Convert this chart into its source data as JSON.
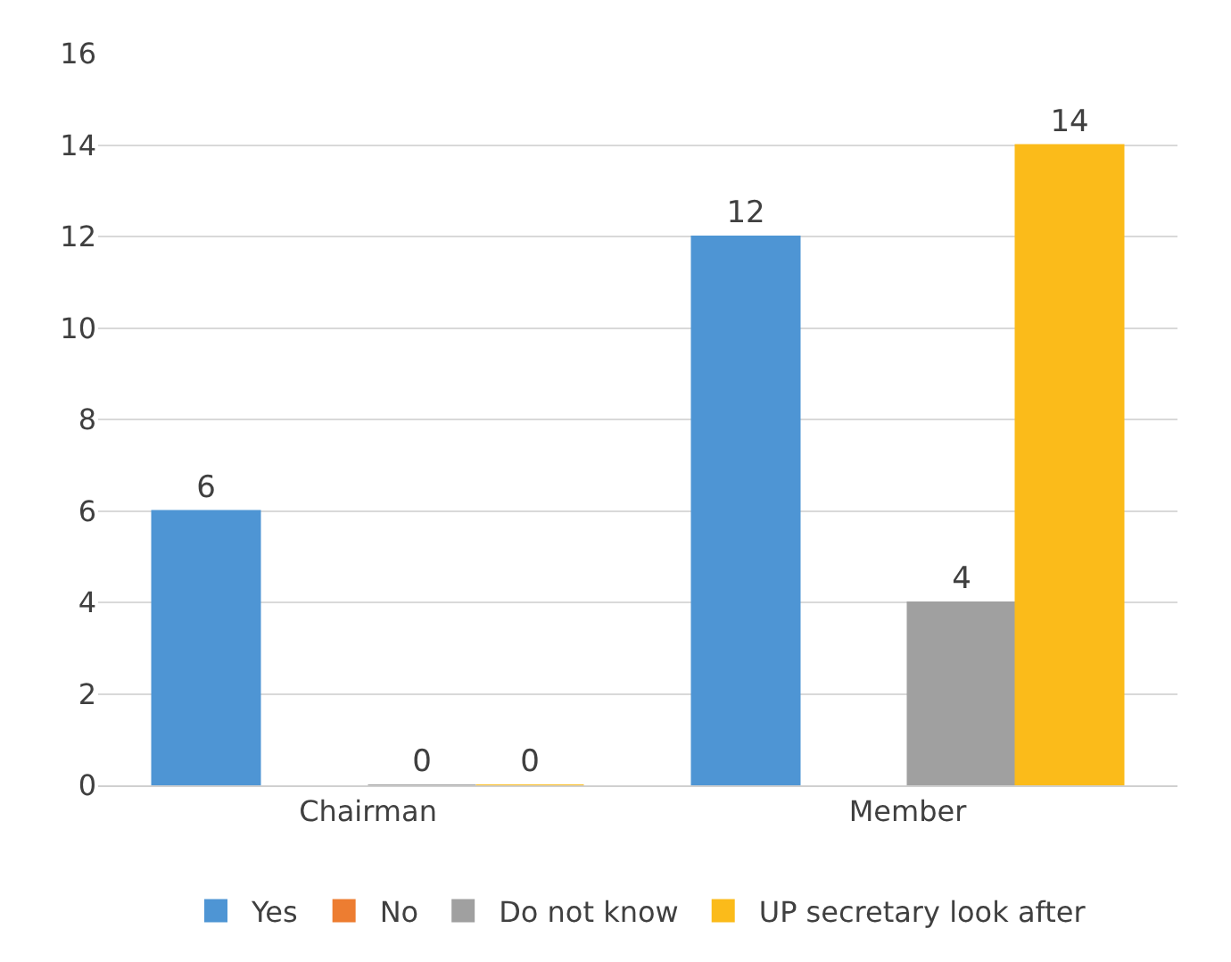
{
  "chart_data": {
    "type": "bar",
    "categories": [
      "Chairman",
      "Member"
    ],
    "series": [
      {
        "name": "Yes",
        "color": "#4e95d4",
        "values": [
          6,
          12
        ]
      },
      {
        "name": "No",
        "color": "#ed7d31",
        "values": [
          null,
          null
        ]
      },
      {
        "name": "Do not know",
        "color": "#a0a0a0",
        "values": [
          0,
          4
        ]
      },
      {
        "name": "UP secretary look after",
        "color": "#fbbb1a",
        "values": [
          0,
          14
        ]
      }
    ],
    "ylim": [
      0,
      16
    ],
    "yticks": [
      0,
      2,
      4,
      6,
      8,
      10,
      12,
      14,
      16
    ],
    "grid": "y",
    "legend": "bottom",
    "data_labels": true
  }
}
